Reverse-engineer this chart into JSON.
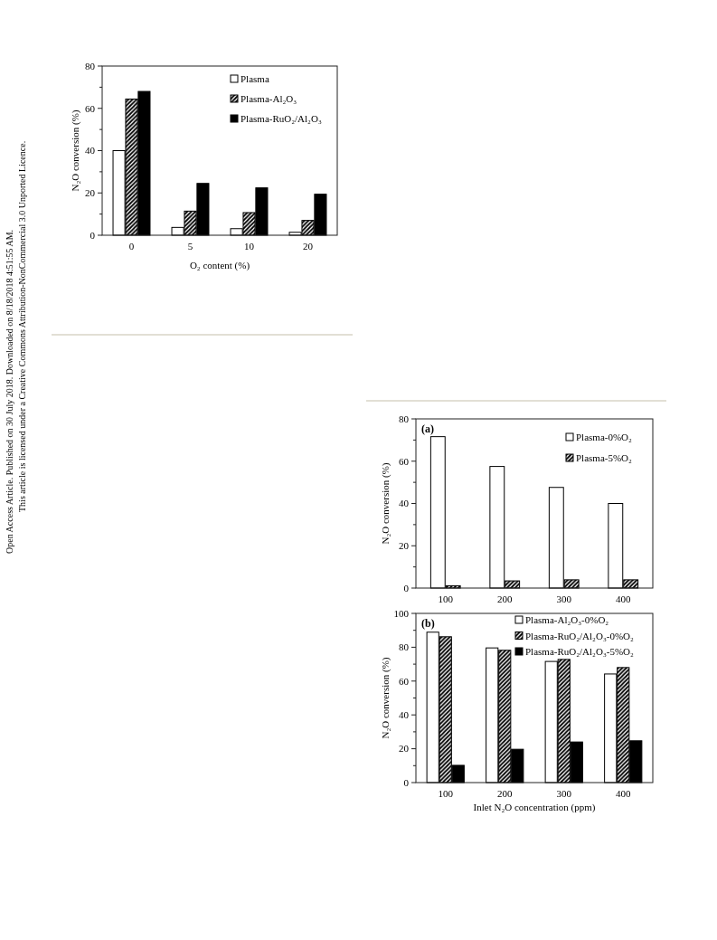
{
  "chart_data": [
    {
      "type": "bar",
      "xlabel": "O₂ content (%)",
      "ylabel": "N₂O conversion (%)",
      "categories": [
        "0",
        "5",
        "10",
        "20"
      ],
      "series": [
        {
          "name": "Plasma",
          "color": "#ffffff",
          "values": [
            40,
            3.7,
            3.1,
            1.4
          ]
        },
        {
          "name": "Plasma-Al₂O₃",
          "color": "#000000",
          "values": [
            64.4,
            11.4,
            10.7,
            7.0
          ]
        },
        {
          "name": "Plasma-RuO₂/Al₂O₃",
          "color": "#000000",
          "values": [
            68,
            24.5,
            22.4,
            19.4
          ]
        }
      ],
      "ylim": [
        0,
        80
      ],
      "yticks": [
        0,
        {
          "value": 10,
          "label": null
        },
        20,
        {
          "value": 30,
          "label": null
        },
        40,
        {
          "value": 50,
          "label": null
        },
        60,
        {
          "value": 70,
          "label": null
        },
        80
      ],
      "legend": "top right",
      "annotations": [
        "Open Access Article. Published on 30 July 2018. Downloaded on 8/18/2018 4:51:55 AM.",
        "This article is licensed under a Creative Commons Attribution-NonCommercial 3.0 Unported Licence."
      ]
    },
    {
      "type": "bar",
      "ylabel": "N₂O conversion (%)",
      "categories": [
        "100",
        "200",
        "300",
        "400"
      ],
      "series": [
        {
          "name": "Plasma-0%O₂",
          "color": "#ffffff",
          "values": [
            71.6,
            57.5,
            47.6,
            40
          ]
        },
        {
          "name": "Plasma-5%O₂",
          "color": "#000000",
          "values": [
            1.1,
            3.4,
            3.9,
            3.9
          ]
        }
      ],
      "ylim": [
        0,
        80
      ],
      "yticks": [
        0,
        {
          "value": 10,
          "label": null
        },
        20,
        {
          "value": 30,
          "label": null
        },
        40,
        {
          "value": 50,
          "label": null
        },
        60,
        {
          "value": 70,
          "label": null
        },
        80
      ],
      "legend": "top right",
      "annotations": [
        "(a)"
      ]
    },
    {
      "type": "bar",
      "xlabel": "Inlet N₂O concentration (ppm)",
      "ylabel": "N₂O conversion (%)",
      "categories": [
        "100",
        "200",
        "300",
        "400"
      ],
      "series": [
        {
          "name": "Plasma-Al₂O₃-0%O₂",
          "color": "#ffffff",
          "values": [
            88.9,
            79.6,
            71.6,
            64.2
          ]
        },
        {
          "name": "Plasma-RuO₂/Al₂O₃-0%O₂",
          "color": "#000000",
          "values": [
            86.2,
            78.2,
            72.8,
            68.0
          ]
        },
        {
          "name": "Plasma-RuO₂/Al₂O₃-5%O₂",
          "color": "#000000",
          "values": [
            10.2,
            19.7,
            24.0,
            24.7
          ]
        }
      ],
      "ylim": [
        0,
        100
      ],
      "yticks": [
        0,
        {
          "value": 10,
          "label": null
        },
        20,
        {
          "value": 30,
          "label": null
        },
        40,
        {
          "value": 50,
          "label": null
        },
        60,
        {
          "value": 70,
          "label": null
        },
        80,
        {
          "value": 90,
          "label": null
        },
        100
      ],
      "legend": "top right",
      "annotations": [
        "(b)"
      ]
    }
  ]
}
